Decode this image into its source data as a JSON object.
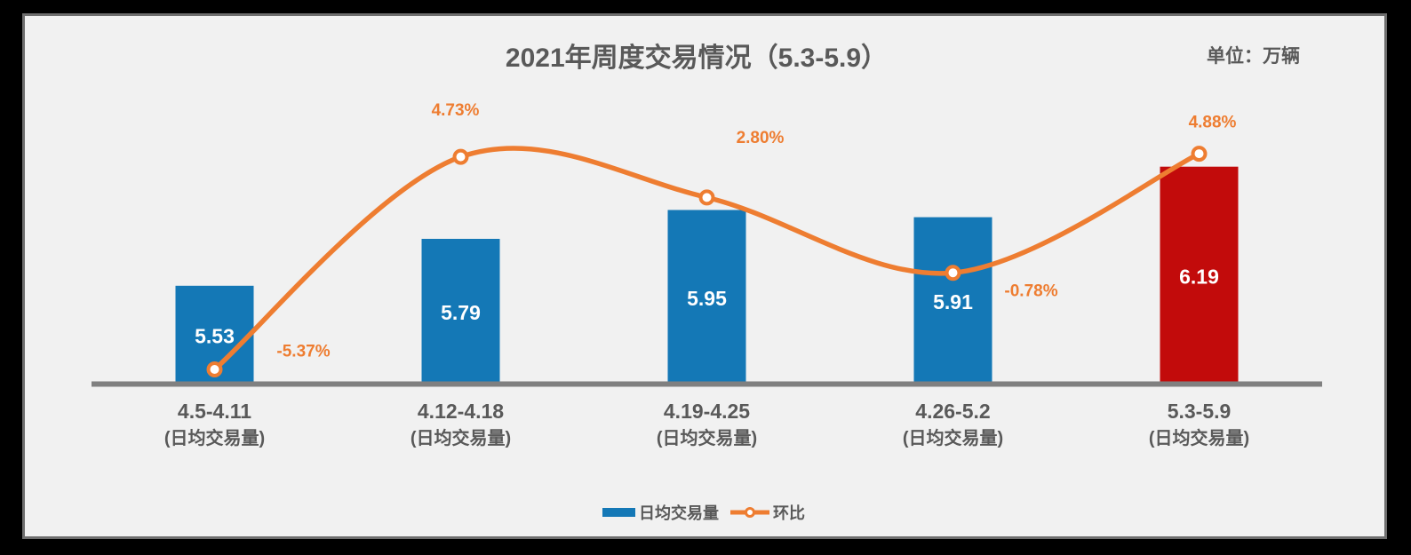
{
  "chart_data": {
    "type": "combo-bar-line",
    "title": "2021年周度交易情况（5.3-5.9）",
    "unit_label": "单位：万辆",
    "categories": [
      "4.5-4.11",
      "4.12-4.18",
      "4.19-4.25",
      "4.26-5.2",
      "5.3-5.9"
    ],
    "category_sublabel": "(日均交易量)",
    "bar_series": {
      "name": "日均交易量",
      "values": [
        5.53,
        5.79,
        5.95,
        5.91,
        6.19
      ],
      "labels": [
        "5.53",
        "5.79",
        "5.95",
        "5.91",
        "6.19"
      ]
    },
    "line_series": {
      "name": "环比",
      "values_pct": [
        -5.37,
        4.73,
        2.8,
        -0.78,
        4.88
      ],
      "labels": [
        "-5.37%",
        "4.73%",
        "2.80%",
        "-0.78%",
        "4.88%"
      ]
    },
    "bar_axis_baseline": 5.0,
    "highlight_index": 4,
    "legend_position": "bottom",
    "grid": false,
    "colors": {
      "bar": "#1478B6",
      "bar_highlight": "#C20B0B",
      "line": "#EE7D31",
      "pct_label": "#EE7D31",
      "text": "#595959",
      "axis": "#808080",
      "value_label": "#FFFFFF",
      "canvas": "#F1F1F1"
    }
  }
}
